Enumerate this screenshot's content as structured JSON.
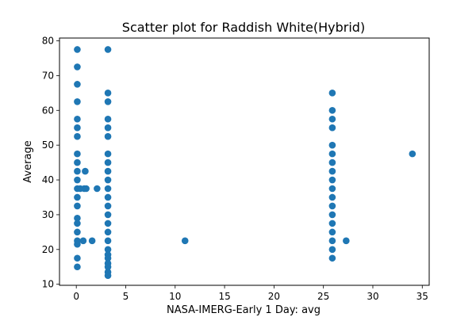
{
  "chart_data": {
    "type": "scatter",
    "title": "Scatter plot for Raddish White(Hybrid)",
    "xlabel": "NASA-IMERG-Early 1 Day: avg",
    "ylabel": "Average",
    "xlim": [
      -1.7,
      35.7
    ],
    "ylim": [
      9.7,
      80.8
    ],
    "xticks": [
      0,
      5,
      10,
      15,
      20,
      25,
      30,
      35
    ],
    "yticks": [
      10,
      20,
      30,
      40,
      50,
      60,
      70,
      80
    ],
    "grid": false,
    "series": [
      {
        "color": "#1f77b4",
        "points": [
          [
            0.1,
            77.5
          ],
          [
            0.1,
            72.5
          ],
          [
            0.1,
            67.5
          ],
          [
            0.1,
            62.5
          ],
          [
            0.1,
            57.5
          ],
          [
            0.1,
            55
          ],
          [
            0.1,
            52.5
          ],
          [
            0.1,
            47.5
          ],
          [
            0.1,
            45
          ],
          [
            0.1,
            42.5
          ],
          [
            0.1,
            40
          ],
          [
            0.1,
            37.5
          ],
          [
            0.1,
            35
          ],
          [
            0.1,
            32.5
          ],
          [
            0.1,
            29
          ],
          [
            0.1,
            27.5
          ],
          [
            0.1,
            25
          ],
          [
            0.1,
            22.5
          ],
          [
            0.1,
            21.5
          ],
          [
            0.1,
            17.5
          ],
          [
            0.1,
            15
          ],
          [
            0.4,
            37.5
          ],
          [
            0.7,
            22.5
          ],
          [
            0.8,
            37.5
          ],
          [
            0.9,
            42.5
          ],
          [
            1.0,
            37.5
          ],
          [
            1.6,
            22.5
          ],
          [
            2.1,
            37.5
          ],
          [
            3.2,
            77.5
          ],
          [
            3.2,
            65
          ],
          [
            3.2,
            62.5
          ],
          [
            3.2,
            57.5
          ],
          [
            3.2,
            55
          ],
          [
            3.2,
            52.5
          ],
          [
            3.2,
            47.5
          ],
          [
            3.2,
            45
          ],
          [
            3.2,
            42.5
          ],
          [
            3.2,
            40
          ],
          [
            3.2,
            37.5
          ],
          [
            3.2,
            35
          ],
          [
            3.2,
            32.5
          ],
          [
            3.2,
            30
          ],
          [
            3.2,
            27.5
          ],
          [
            3.2,
            25
          ],
          [
            3.2,
            22.5
          ],
          [
            3.2,
            20
          ],
          [
            3.2,
            18.5
          ],
          [
            3.2,
            17.5
          ],
          [
            3.2,
            16
          ],
          [
            3.2,
            15
          ],
          [
            3.2,
            13.5
          ],
          [
            3.2,
            12.5
          ],
          [
            11.0,
            22.5
          ],
          [
            25.9,
            65
          ],
          [
            25.9,
            60
          ],
          [
            25.9,
            57.5
          ],
          [
            25.9,
            55
          ],
          [
            25.9,
            50
          ],
          [
            25.9,
            47.5
          ],
          [
            25.9,
            45
          ],
          [
            25.9,
            42.5
          ],
          [
            25.9,
            40
          ],
          [
            25.9,
            37.5
          ],
          [
            25.9,
            35
          ],
          [
            25.9,
            32.5
          ],
          [
            25.9,
            30
          ],
          [
            25.9,
            27.5
          ],
          [
            25.9,
            25
          ],
          [
            25.9,
            22.5
          ],
          [
            25.9,
            20
          ],
          [
            25.9,
            17.5
          ],
          [
            27.3,
            22.5
          ],
          [
            34.0,
            47.5
          ]
        ]
      }
    ]
  }
}
